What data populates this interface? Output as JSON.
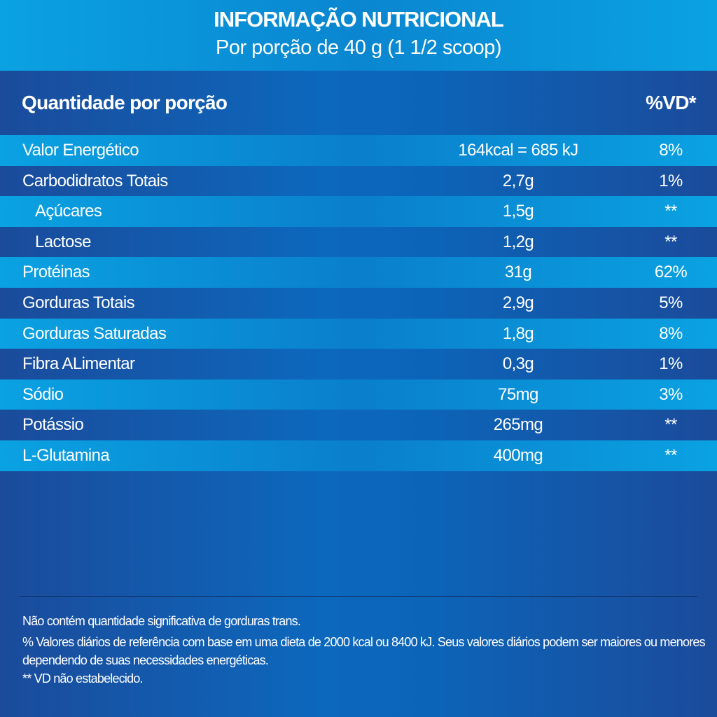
{
  "header": {
    "title": "INFORMAÇÃO NUTRICIONAL",
    "subtitle": "Por porção de 40 g (1 1/2 scoop)"
  },
  "table_header": {
    "quantity": "Quantidade por porção",
    "dv": "%VD*"
  },
  "rows": [
    {
      "name": "Valor Energético",
      "amount": "164kcal = 685 kJ",
      "dv": "8%"
    },
    {
      "name": "Carbodidratos Totais",
      "amount": "2,7g",
      "dv": "1%"
    },
    {
      "name": "Açúcares",
      "amount": "1,5g",
      "dv": "**"
    },
    {
      "name": "Lactose",
      "amount": "1,2g",
      "dv": "**"
    },
    {
      "name": "Protéinas",
      "amount": "31g",
      "dv": "62%"
    },
    {
      "name": "Gorduras Totais",
      "amount": "2,9g",
      "dv": "5%"
    },
    {
      "name": "Gorduras Saturadas",
      "amount": "1,8g",
      "dv": "8%"
    },
    {
      "name": "Fibra ALimentar",
      "amount": "0,3g",
      "dv": "1%"
    },
    {
      "name": "Sódio",
      "amount": "75mg",
      "dv": "3%"
    },
    {
      "name": "Potássio",
      "amount": "265mg",
      "dv": "**"
    },
    {
      "name": "L-Glutamina",
      "amount": "400mg",
      "dv": "**"
    }
  ],
  "footnotes": [
    "Não contém quantidade significativa de gorduras trans.",
    "% Valores diários de referência com base em uma dieta de 2000 kcal ou 8400 kJ. Seus valores diários podem ser maiores ou menores",
    "dependendo de suas necessidades energéticas.",
    "** VD não estabelecido."
  ]
}
